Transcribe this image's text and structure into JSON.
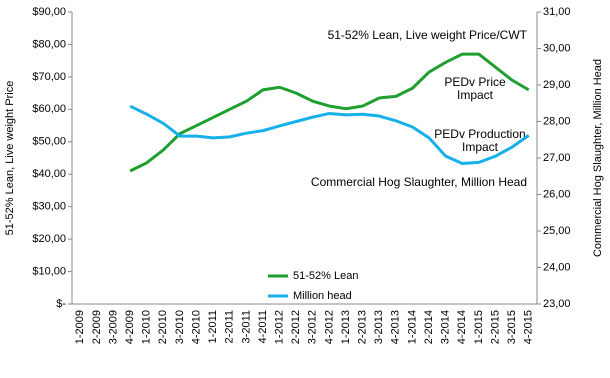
{
  "chart_data": {
    "type": "line",
    "y_label": "51-52% Lean, Live weight Price",
    "y2_label": "Commercial Hog Slaughter, Million Head",
    "annotations": [
      "51-52% Lean, Live weight Price/CWT",
      "PEDv Price Impact",
      "PEDv Production Impact",
      "Commercial Hog Slaughter, Million Head"
    ],
    "categories": [
      "1-2009",
      "2-2009",
      "3-2009",
      "4-2009",
      "1-2010",
      "2-2010",
      "3-2010",
      "4-2010",
      "1-2011",
      "2-2011",
      "3-2011",
      "4-2011",
      "1-2012",
      "2-2012",
      "3-2012",
      "4-2012",
      "1-2013",
      "2-2013",
      "3-2013",
      "4-2013",
      "1-2014",
      "2-2014",
      "3-2014",
      "4-2014",
      "1-2015",
      "2-2015",
      "3-2015",
      "4-2015"
    ],
    "series": [
      {
        "name": "51-52% Lean",
        "color": "#1fa02e",
        "values": [
          null,
          null,
          null,
          41,
          43.5,
          47.5,
          52.5,
          55,
          57.5,
          60,
          62.5,
          66,
          66.8,
          65,
          62.5,
          61,
          60.2,
          61,
          63.5,
          64,
          66.5,
          71.5,
          74.5,
          77,
          77,
          73,
          69,
          66
        ]
      },
      {
        "name": "Million head",
        "color": "#17b0ea",
        "axis": "y2",
        "values": [
          null,
          null,
          null,
          28.42,
          28.2,
          27.95,
          27.6,
          27.6,
          27.55,
          27.58,
          27.68,
          27.75,
          27.88,
          28.0,
          28.12,
          28.22,
          28.18,
          28.2,
          28.15,
          28.02,
          27.85,
          27.55,
          27.05,
          26.85,
          26.88,
          27.05,
          27.3,
          27.62
        ]
      }
    ],
    "ylim": [
      0,
      90
    ],
    "yticks": [
      {
        "value": 0,
        "label": "$-"
      },
      {
        "value": 10,
        "label": "$10,00"
      },
      {
        "value": 20,
        "label": "$20,00"
      },
      {
        "value": 30,
        "label": "$30,00"
      },
      {
        "value": 40,
        "label": "$40,00"
      },
      {
        "value": 50,
        "label": "$50,00"
      },
      {
        "value": 60,
        "label": "$60,00"
      },
      {
        "value": 70,
        "label": "$70,00"
      },
      {
        "value": 80,
        "label": "$80,00"
      },
      {
        "value": 90,
        "label": "$90,00"
      }
    ],
    "y2lim": [
      23,
      31
    ],
    "y2ticks": [
      {
        "value": 23,
        "label": "23,00"
      },
      {
        "value": 24,
        "label": "24,00"
      },
      {
        "value": 25,
        "label": "25,00"
      },
      {
        "value": 26,
        "label": "26,00"
      },
      {
        "value": 27,
        "label": "27,00"
      },
      {
        "value": 28,
        "label": "28,00"
      },
      {
        "value": 29,
        "label": "29,00"
      },
      {
        "value": 30,
        "label": "30,00"
      },
      {
        "value": 31,
        "label": "31,00"
      }
    ]
  }
}
